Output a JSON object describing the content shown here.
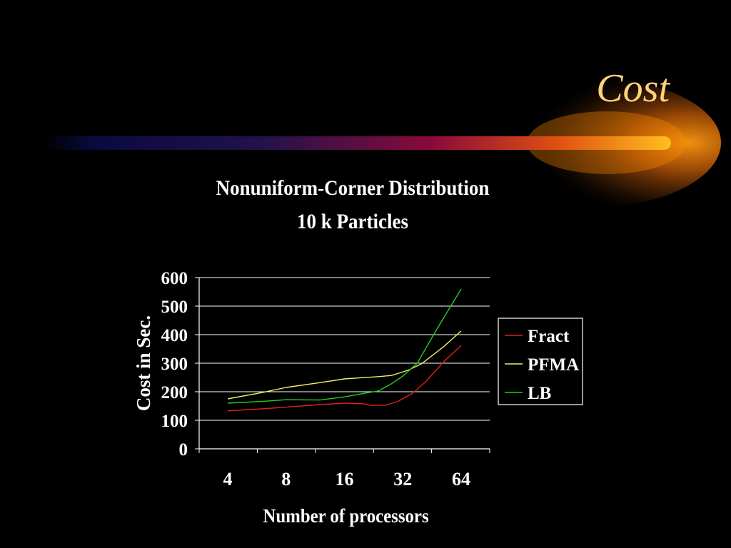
{
  "slide": {
    "title": "Cost",
    "colors": {
      "background": "#000000",
      "title": "#ffd27a",
      "text": "#ffffff",
      "gridline": "#ffffff",
      "banner_glow": "#ff8a00",
      "banner_dark": "#0a0a40"
    }
  },
  "chart_data": {
    "type": "line",
    "title": "Nonuniform-Corner Distribution",
    "subtitle": "10 k Particles",
    "xlabel": "Number of processors",
    "ylabel": "Cost in Sec.",
    "x_scale": "log2",
    "categories": [
      "4",
      "8",
      "16",
      "32",
      "64"
    ],
    "ylim": [
      0,
      600
    ],
    "yticks": [
      0,
      100,
      200,
      300,
      400,
      500,
      600
    ],
    "grid": true,
    "legend": "right",
    "series": [
      {
        "name": "Fract",
        "color": "#e0201c",
        "points": [
          [
            4,
            133
          ],
          [
            6,
            140
          ],
          [
            8,
            146
          ],
          [
            12,
            155
          ],
          [
            16,
            160
          ],
          [
            20,
            158
          ],
          [
            22,
            152
          ],
          [
            26,
            153
          ],
          [
            30,
            165
          ],
          [
            36,
            195
          ],
          [
            42,
            235
          ],
          [
            52,
            305
          ],
          [
            64,
            362
          ]
        ]
      },
      {
        "name": "PFMA",
        "color": "#f2f060",
        "points": [
          [
            4,
            175
          ],
          [
            6,
            197
          ],
          [
            8,
            215
          ],
          [
            12,
            232
          ],
          [
            16,
            245
          ],
          [
            24,
            253
          ],
          [
            28,
            257
          ],
          [
            34,
            275
          ],
          [
            40,
            298
          ],
          [
            52,
            358
          ],
          [
            64,
            413
          ]
        ]
      },
      {
        "name": "LB",
        "color": "#20d020",
        "points": [
          [
            4,
            160
          ],
          [
            6,
            166
          ],
          [
            8,
            172
          ],
          [
            12,
            171
          ],
          [
            16,
            182
          ],
          [
            20,
            194
          ],
          [
            24,
            203
          ],
          [
            28,
            228
          ],
          [
            32,
            255
          ],
          [
            38,
            300
          ],
          [
            48,
            420
          ],
          [
            64,
            560
          ]
        ]
      }
    ]
  }
}
